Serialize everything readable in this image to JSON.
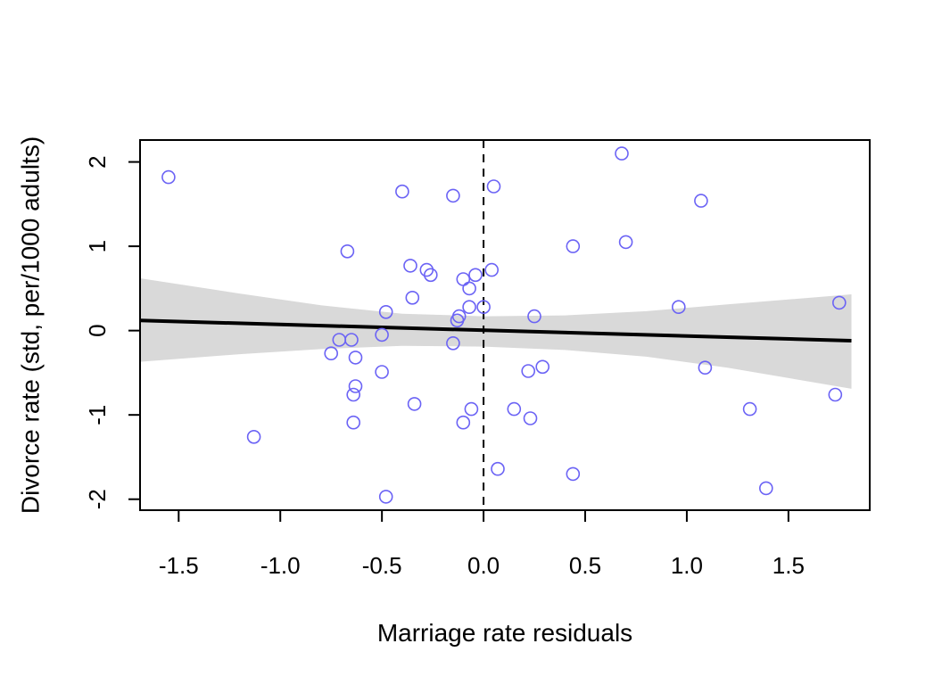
{
  "chart_data": {
    "type": "scatter",
    "title": "",
    "xlabel": "Marriage rate residuals",
    "ylabel": "Divorce rate (std, per/1000 adults)",
    "xlim": [
      -1.69,
      1.9
    ],
    "ylim": [
      -2.13,
      2.26
    ],
    "xticks": [
      -1.5,
      -1.0,
      -0.5,
      0.0,
      0.5,
      1.0,
      1.5
    ],
    "xtick_labels": [
      "-1.5",
      "-1.0",
      "-0.5",
      "0.0",
      "0.5",
      "1.0",
      "1.5"
    ],
    "yticks": [
      -2,
      -1,
      0,
      1,
      2
    ],
    "ytick_labels": [
      "-2",
      "-1",
      "0",
      "1",
      "2"
    ],
    "grid": false,
    "colors": {
      "points": "#6b63f5",
      "line": "#000000",
      "band": "#d9d9d9",
      "refline": "#000000"
    },
    "reference_line": {
      "x": 0.0,
      "style": "dashed"
    },
    "regression_line": {
      "x": [
        -1.69,
        1.81
      ],
      "y": [
        0.12,
        -0.12
      ]
    },
    "confidence_band": {
      "x": [
        -1.69,
        -1.2,
        -0.8,
        -0.4,
        0.0,
        0.4,
        0.8,
        1.2,
        1.81
      ],
      "upper": [
        0.62,
        0.44,
        0.3,
        0.2,
        0.17,
        0.18,
        0.23,
        0.31,
        0.43
      ],
      "lower": [
        -0.37,
        -0.28,
        -0.22,
        -0.18,
        -0.19,
        -0.23,
        -0.31,
        -0.44,
        -0.69
      ]
    },
    "points": {
      "x": [
        -1.55,
        -1.13,
        -0.75,
        -0.71,
        -0.67,
        -0.65,
        -0.64,
        -0.64,
        -0.63,
        -0.63,
        -0.5,
        -0.5,
        -0.48,
        -0.48,
        -0.4,
        -0.36,
        -0.35,
        -0.34,
        -0.28,
        -0.26,
        -0.15,
        -0.15,
        -0.13,
        -0.12,
        -0.1,
        -0.1,
        -0.07,
        -0.07,
        -0.06,
        -0.04,
        0.0,
        0.04,
        0.05,
        0.07,
        0.15,
        0.22,
        0.23,
        0.25,
        0.29,
        0.44,
        0.44,
        0.68,
        0.7,
        0.96,
        1.07,
        1.09,
        1.31,
        1.39,
        1.73,
        1.75
      ],
      "y": [
        1.82,
        -1.26,
        -0.27,
        -0.11,
        0.94,
        -0.11,
        -0.76,
        -1.09,
        -0.66,
        -0.32,
        -0.05,
        -0.49,
        -1.97,
        0.22,
        1.65,
        0.77,
        0.39,
        -0.87,
        0.72,
        0.66,
        1.6,
        -0.15,
        0.12,
        0.17,
        0.61,
        -1.09,
        0.5,
        0.28,
        -0.93,
        0.66,
        0.28,
        0.72,
        1.71,
        -1.64,
        -0.93,
        -0.48,
        -1.04,
        0.17,
        -0.43,
        1.0,
        -1.7,
        2.1,
        1.05,
        0.28,
        1.54,
        -0.44,
        -0.93,
        -1.87,
        -0.76,
        0.33
      ]
    }
  }
}
